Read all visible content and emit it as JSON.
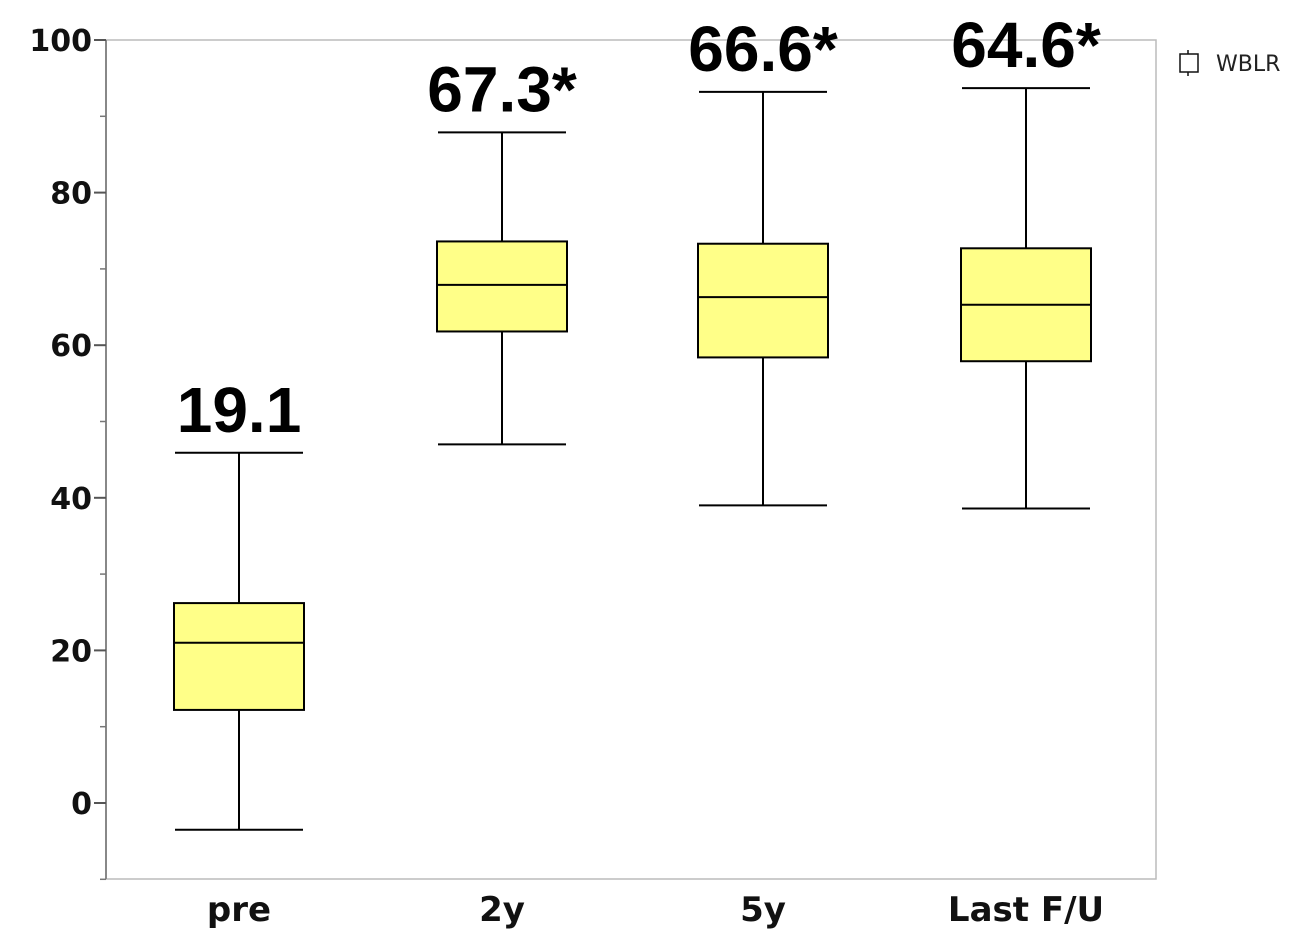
{
  "chart_data": {
    "type": "box",
    "categories": [
      "pre",
      "2y",
      "5y",
      "Last F/U"
    ],
    "boxes": [
      {
        "category": "pre",
        "whisker_low": -3.5,
        "q1": 12.2,
        "median": 21.0,
        "q3": 26.2,
        "whisker_high": 45.9
      },
      {
        "category": "2y",
        "whisker_low": 47.0,
        "q1": 61.8,
        "median": 67.9,
        "q3": 73.6,
        "whisker_high": 87.9
      },
      {
        "category": "5y",
        "whisker_low": 39.0,
        "q1": 58.4,
        "median": 66.3,
        "q3": 73.3,
        "whisker_high": 93.2
      },
      {
        "category": "Last F/U",
        "whisker_low": 38.6,
        "q1": 57.9,
        "median": 65.3,
        "q3": 72.7,
        "whisker_high": 93.7
      }
    ],
    "data_labels": [
      "19.1",
      "67.3*",
      "66.6*",
      "64.6*"
    ],
    "y_ticks": [
      "0",
      "20",
      "40",
      "60",
      "80",
      "100"
    ],
    "ylim": [
      -10,
      100
    ],
    "legend": {
      "label": "WBLR",
      "position": "top-right"
    },
    "colors": {
      "box_fill": "#FFFF88",
      "stroke": "#000000",
      "frame": "#bbbbbb"
    },
    "grid": false,
    "title": "",
    "xlabel": "",
    "ylabel": ""
  }
}
